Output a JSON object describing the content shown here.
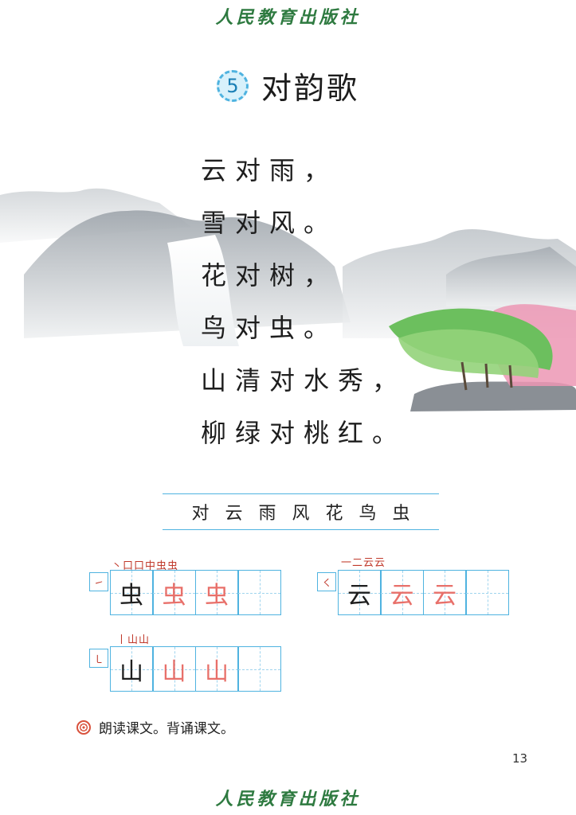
{
  "publisher": "人民教育出版社",
  "lesson": {
    "number": "5",
    "title": "对韵歌"
  },
  "poem": [
    "云对雨，",
    "雪对风。",
    "花对树，",
    "鸟对虫。",
    "山清对水秀，",
    "柳绿对桃红。"
  ],
  "vocabulary": "对云雨风花鸟虫",
  "writing": [
    {
      "character": "虫",
      "stroke_order": "丶口口中虫虫",
      "first_stroke": "㇀",
      "traces": [
        "虫",
        "虫"
      ]
    },
    {
      "character": "云",
      "stroke_order": "一二云云",
      "first_stroke": "㇛",
      "traces": [
        "云",
        "云"
      ]
    },
    {
      "character": "山",
      "stroke_order": "丨山山",
      "first_stroke": "㇄",
      "traces": [
        "山",
        "山"
      ]
    }
  ],
  "exercise": "朗读课文。背诵课文。",
  "page_number": "13",
  "colors": {
    "accent_blue": "#4fb3e0",
    "trace_red": "#e8706a",
    "stroke_red": "#c0392b",
    "publisher_green": "#2e7a40"
  }
}
